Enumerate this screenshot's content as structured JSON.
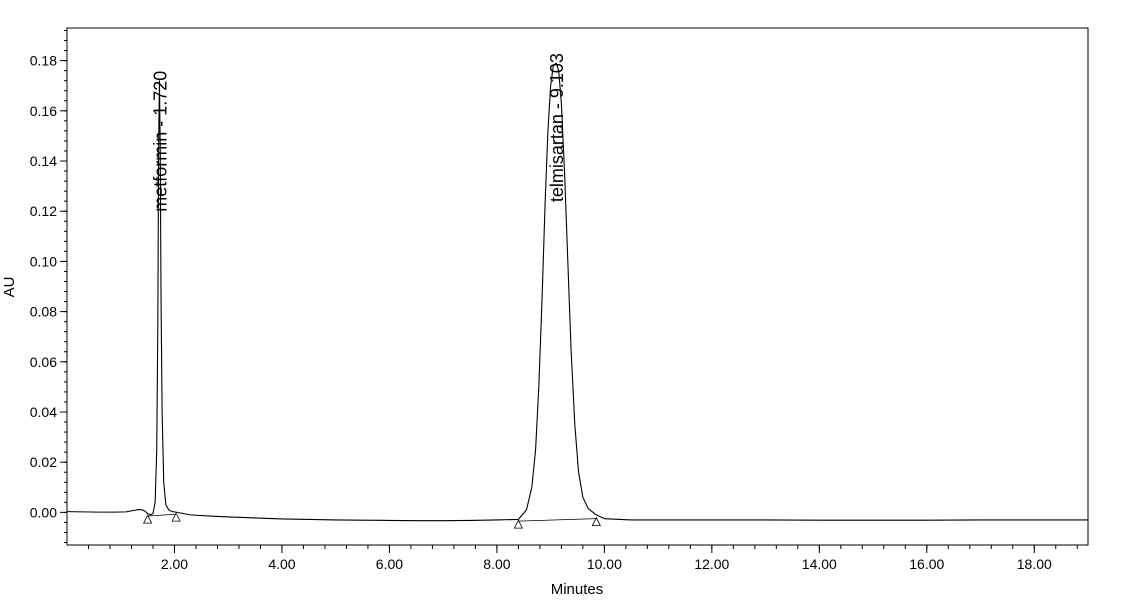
{
  "chart_data": {
    "type": "line",
    "title": "",
    "xlabel": "Minutes",
    "ylabel": "AU",
    "xlim": [
      0.0,
      19.0
    ],
    "ylim": [
      -0.013,
      0.193
    ],
    "x_ticks": [
      2.0,
      4.0,
      6.0,
      8.0,
      10.0,
      12.0,
      14.0,
      16.0,
      18.0
    ],
    "x_tick_labels": [
      "2.00",
      "4.00",
      "6.00",
      "8.00",
      "10.00",
      "12.00",
      "14.00",
      "16.00",
      "18.00"
    ],
    "x_minor_step": 0.4,
    "y_ticks": [
      0.0,
      0.02,
      0.04,
      0.06,
      0.08,
      0.1,
      0.12,
      0.14,
      0.16,
      0.18
    ],
    "y_tick_labels": [
      "0.00",
      "0.02",
      "0.04",
      "0.06",
      "0.08",
      "0.10",
      "0.12",
      "0.14",
      "0.16",
      "0.18"
    ],
    "y_minor_step": 0.004,
    "grid": false,
    "legend": "none",
    "line_color": "#000000",
    "series": [
      {
        "x": [
          0.0,
          0.3,
          0.6,
          0.9,
          1.1,
          1.2,
          1.3,
          1.35,
          1.4,
          1.45,
          1.5,
          1.55,
          1.6,
          1.64,
          1.67,
          1.69,
          1.705,
          1.72,
          1.735,
          1.75,
          1.77,
          1.8,
          1.84,
          1.9,
          1.97,
          2.05,
          2.3,
          2.7,
          3.0,
          3.5,
          4.0,
          4.5,
          5.0,
          5.5,
          6.0,
          6.5,
          7.0,
          7.5,
          8.0,
          8.4,
          8.55,
          8.65,
          8.72,
          8.78,
          8.84,
          8.9,
          8.95,
          9.0,
          9.05,
          9.103,
          9.15,
          9.2,
          9.26,
          9.32,
          9.38,
          9.45,
          9.52,
          9.6,
          9.7,
          9.85,
          10.0,
          10.5,
          11.0,
          12.0,
          13.0,
          14.0,
          15.0,
          16.0,
          17.0,
          18.0,
          19.0
        ],
        "y": [
          0.0003,
          0.0002,
          0.0001,
          0.0001,
          0.0002,
          0.0006,
          0.001,
          0.0011,
          0.001,
          0.0005,
          -0.0005,
          -0.001,
          -0.0005,
          0.004,
          0.025,
          0.075,
          0.145,
          0.172,
          0.145,
          0.085,
          0.04,
          0.012,
          0.003,
          0.0008,
          0.0003,
          0.0,
          -0.001,
          -0.0015,
          -0.0018,
          -0.0022,
          -0.0026,
          -0.0028,
          -0.003,
          -0.0031,
          -0.0032,
          -0.0033,
          -0.0033,
          -0.0032,
          -0.003,
          -0.0028,
          0.001,
          0.01,
          0.025,
          0.05,
          0.085,
          0.125,
          0.152,
          0.17,
          0.178,
          0.179,
          0.176,
          0.163,
          0.135,
          0.1,
          0.065,
          0.035,
          0.016,
          0.006,
          0.0015,
          -0.001,
          -0.0025,
          -0.003,
          -0.003,
          -0.003,
          -0.003,
          -0.0031,
          -0.0031,
          -0.0031,
          -0.003,
          -0.003,
          -0.003
        ]
      }
    ],
    "peaks": [
      {
        "label": "metformin - 1.720",
        "rt": 1.72,
        "label_top_au": 0.176,
        "start": 1.5,
        "end": 2.03,
        "start_au": -0.0015,
        "end_au": -0.0007
      },
      {
        "label": "telmisartan - 9.103",
        "rt": 9.103,
        "label_top_au": 0.183,
        "start": 8.4,
        "end": 9.85,
        "start_au": -0.0035,
        "end_au": -0.0025
      }
    ]
  }
}
